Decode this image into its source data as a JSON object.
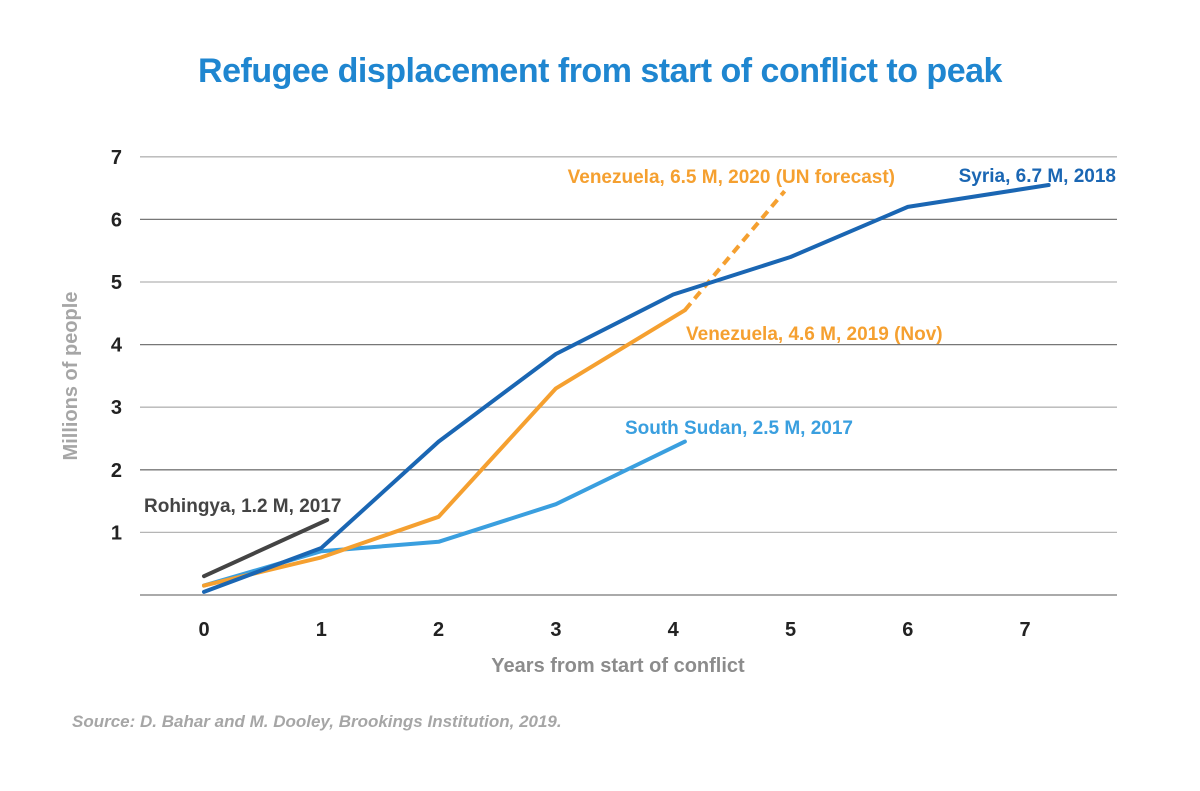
{
  "chart_data": {
    "type": "line",
    "title": "Refugee displacement from start of conflict to peak",
    "xlabel": "Years from start of conflict",
    "ylabel": "Millions of people",
    "xlim": [
      0,
      7
    ],
    "ylim": [
      0,
      7
    ],
    "x_ticks": [
      "0",
      "1",
      "2",
      "3",
      "4",
      "5",
      "6",
      "7"
    ],
    "y_ticks": [
      "1",
      "2",
      "3",
      "4",
      "5",
      "6",
      "7"
    ],
    "grid": true,
    "series": [
      {
        "name": "Syria",
        "color": "#1a66b3",
        "style": "solid",
        "points": [
          [
            0,
            0.05
          ],
          [
            1,
            0.75
          ],
          [
            2,
            2.45
          ],
          [
            3,
            3.85
          ],
          [
            4,
            4.8
          ],
          [
            5,
            5.4
          ],
          [
            6,
            6.2
          ],
          [
            7.2,
            6.55
          ]
        ],
        "label": "Syria, 6.7 M, 2018"
      },
      {
        "name": "Venezuela",
        "color": "#f5a030",
        "style": "solid",
        "points": [
          [
            0,
            0.15
          ],
          [
            1,
            0.6
          ],
          [
            2,
            1.25
          ],
          [
            3,
            3.3
          ],
          [
            4.1,
            4.55
          ]
        ],
        "label": "Venezuela, 4.6 M, 2019 (Nov)"
      },
      {
        "name": "Venezuela forecast",
        "color": "#f5a030",
        "style": "dashed",
        "points": [
          [
            4.1,
            4.55
          ],
          [
            4.95,
            6.45
          ]
        ],
        "label": "Venezuela, 6.5 M, 2020 (UN forecast)"
      },
      {
        "name": "South Sudan",
        "color": "#3a9fdf",
        "style": "solid",
        "points": [
          [
            0,
            0.15
          ],
          [
            1,
            0.7
          ],
          [
            2,
            0.85
          ],
          [
            3,
            1.45
          ],
          [
            4.1,
            2.45
          ]
        ],
        "label": "South Sudan, 2.5 M, 2017"
      },
      {
        "name": "Rohingya",
        "color": "#444444",
        "style": "solid",
        "points": [
          [
            0,
            0.3
          ],
          [
            1.05,
            1.2
          ]
        ],
        "label": "Rohingya, 1.2 M, 2017"
      }
    ],
    "source": "Source: D. Bahar and M. Dooley, Brookings Institution, 2019."
  }
}
